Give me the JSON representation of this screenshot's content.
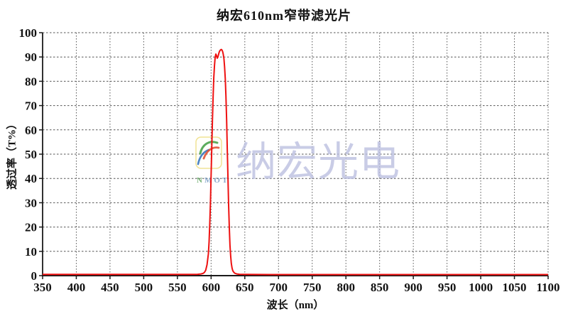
{
  "page": {
    "background": "#ffffff"
  },
  "chart_data": {
    "type": "line",
    "title": "纳宏610nm窄带滤光片",
    "xlabel": "波长（nm）",
    "ylabel": "透过率（T%）",
    "xlim": [
      350,
      1100
    ],
    "ylim": [
      0,
      100
    ],
    "x_ticks": [
      350,
      400,
      450,
      500,
      550,
      600,
      650,
      700,
      750,
      800,
      850,
      900,
      950,
      1000,
      1050,
      1100
    ],
    "y_ticks": [
      0,
      10,
      20,
      30,
      40,
      50,
      60,
      70,
      80,
      90,
      100
    ],
    "grid": "dashed",
    "grid_color": "#555555",
    "axis_color": "#1a1a1a",
    "tick_label_color": "#111111",
    "legend": "none",
    "series": [
      {
        "name": "transmission",
        "color": "#ee1111",
        "peak_wavelength_nm": 615,
        "peak_transmission_pct": 93,
        "points": [
          [
            350,
            0.5
          ],
          [
            400,
            0.5
          ],
          [
            450,
            0.5
          ],
          [
            500,
            0.5
          ],
          [
            550,
            0.5
          ],
          [
            570,
            0.5
          ],
          [
            580,
            0.55
          ],
          [
            585,
            0.7
          ],
          [
            588,
            0.9
          ],
          [
            590,
            1.3
          ],
          [
            592,
            2.2
          ],
          [
            594,
            4.5
          ],
          [
            596,
            9
          ],
          [
            597,
            14
          ],
          [
            598,
            21
          ],
          [
            599,
            30
          ],
          [
            600,
            41
          ],
          [
            601,
            53
          ],
          [
            602,
            64
          ],
          [
            603,
            74
          ],
          [
            604,
            81.5
          ],
          [
            605,
            86.5
          ],
          [
            606,
            89.8
          ],
          [
            607,
            91.2
          ],
          [
            608,
            90.6
          ],
          [
            609,
            89.5
          ],
          [
            610,
            89.9
          ],
          [
            611,
            91
          ],
          [
            612,
            92
          ],
          [
            613,
            92.6
          ],
          [
            614,
            92.9
          ],
          [
            615,
            93.1
          ],
          [
            616,
            92.9
          ],
          [
            617,
            92.3
          ],
          [
            618,
            91.2
          ],
          [
            619,
            89.3
          ],
          [
            620,
            86
          ],
          [
            621,
            81
          ],
          [
            622,
            74
          ],
          [
            623,
            64
          ],
          [
            624,
            52
          ],
          [
            625,
            40
          ],
          [
            626,
            29
          ],
          [
            627,
            19.5
          ],
          [
            628,
            12.5
          ],
          [
            629,
            8
          ],
          [
            630,
            5
          ],
          [
            631,
            3.2
          ],
          [
            632,
            2.2
          ],
          [
            633,
            1.6
          ],
          [
            635,
            1.0
          ],
          [
            638,
            0.7
          ],
          [
            642,
            0.55
          ],
          [
            650,
            0.5
          ],
          [
            700,
            0.45
          ],
          [
            750,
            0.45
          ],
          [
            800,
            0.45
          ],
          [
            850,
            0.45
          ],
          [
            900,
            0.45
          ],
          [
            950,
            0.45
          ],
          [
            1000,
            0.45
          ],
          [
            1050,
            0.45
          ],
          [
            1100,
            0.45
          ]
        ]
      }
    ]
  },
  "watermark": {
    "brand_text": "纳宏光电",
    "logo_text": "NMOT",
    "brand_text_color": "#bcc0e0",
    "logo_border_color": "#f0e08a",
    "logo_arc_green": "#3f9e3f",
    "logo_arc_red": "#e1482a",
    "logo_arc_blue": "#2f6fba",
    "logo_text_color_n": "#55a055",
    "logo_text_color_rest": "#7096c0"
  }
}
